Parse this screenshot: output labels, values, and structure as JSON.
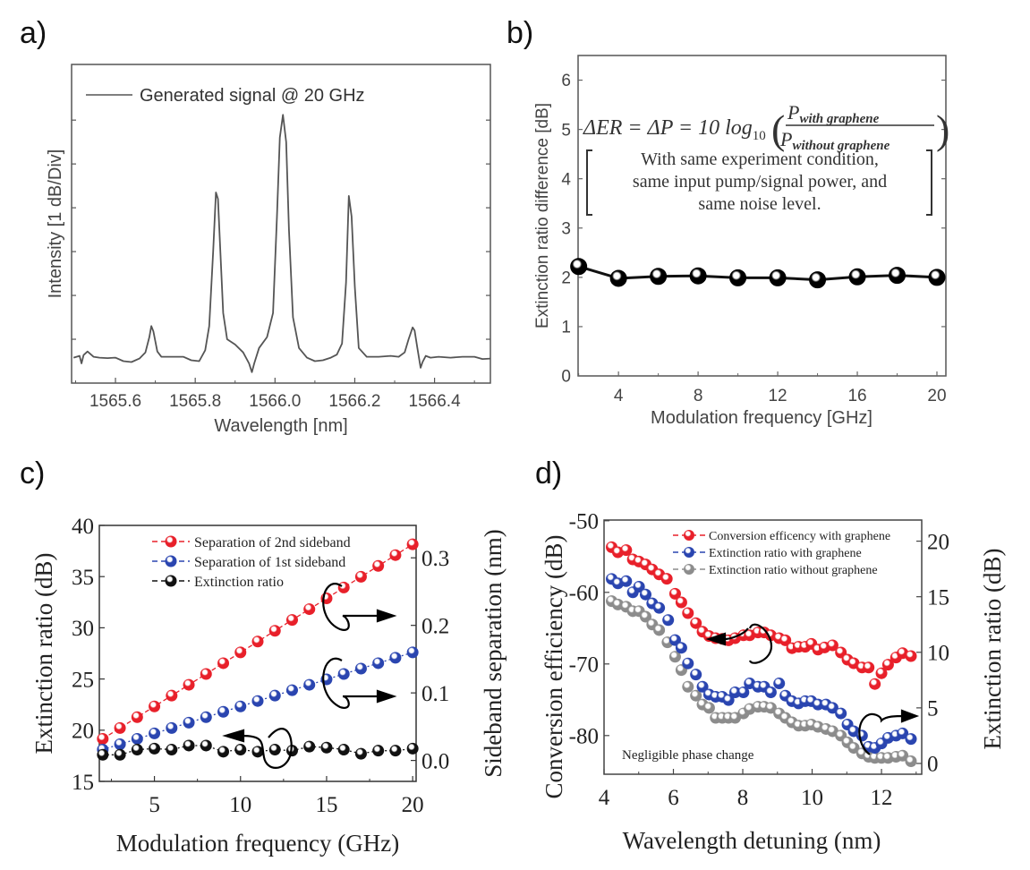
{
  "panel_labels": [
    "a)",
    "b)",
    "c)",
    "d)"
  ],
  "chart_data": [
    {
      "id": "a",
      "type": "line",
      "title": "",
      "xlabel": "Wavelength [nm]",
      "ylabel": "Intensity [1 dB/Div]",
      "xlim": [
        1565.49,
        1566.54
      ],
      "ylim": [
        0,
        7.27
      ],
      "y_unit": "divisions (1 dB/Div)",
      "xticks": [
        1565.6,
        1565.8,
        1566.0,
        1566.2,
        1566.4
      ],
      "xtick_labels": [
        "1565.6",
        "1565.8",
        "1566.0",
        "1566.2",
        "1566.4"
      ],
      "yticks_unlabeled": [
        1,
        2,
        3,
        4,
        5,
        6
      ],
      "grid": false,
      "legend": {
        "placement": "top-left",
        "entries": [
          "Generated signal @ 20 GHz"
        ]
      },
      "series": [
        {
          "name": "Generated signal @ 20 GHz",
          "color": "#555555",
          "x": [
            1565.495,
            1565.51,
            1565.515,
            1565.52,
            1565.53,
            1565.545,
            1565.56,
            1565.58,
            1565.6,
            1565.62,
            1565.64,
            1565.66,
            1565.675,
            1565.685,
            1565.69,
            1565.695,
            1565.705,
            1565.715,
            1565.73,
            1565.75,
            1565.77,
            1565.79,
            1565.81,
            1565.825,
            1565.835,
            1565.845,
            1565.852,
            1565.857,
            1565.862,
            1565.87,
            1565.88,
            1565.9,
            1565.92,
            1565.935,
            1565.942,
            1565.948,
            1565.96,
            1565.98,
            1565.995,
            1566.005,
            1566.012,
            1566.02,
            1566.028,
            1566.035,
            1566.045,
            1566.06,
            1566.08,
            1566.1,
            1566.12,
            1566.14,
            1566.155,
            1566.168,
            1566.178,
            1566.185,
            1566.192,
            1566.2,
            1566.21,
            1566.23,
            1566.26,
            1566.29,
            1566.31,
            1566.325,
            1566.335,
            1566.345,
            1566.35,
            1566.357,
            1566.365,
            1566.37,
            1566.378,
            1566.39,
            1566.41,
            1566.44,
            1566.47,
            1566.5,
            1566.52,
            1566.54
          ],
          "y": [
            0.58,
            0.62,
            0.45,
            0.64,
            0.72,
            0.6,
            0.58,
            0.57,
            0.58,
            0.5,
            0.48,
            0.56,
            0.7,
            1.05,
            1.3,
            1.18,
            0.72,
            0.6,
            0.6,
            0.6,
            0.6,
            0.52,
            0.5,
            0.75,
            1.3,
            3.0,
            4.35,
            4.2,
            3.2,
            1.6,
            1.0,
            0.88,
            0.7,
            0.45,
            0.25,
            0.45,
            0.8,
            1.05,
            1.6,
            3.8,
            5.6,
            6.12,
            5.5,
            3.5,
            1.5,
            0.8,
            0.58,
            0.5,
            0.52,
            0.58,
            0.65,
            0.9,
            2.3,
            4.27,
            3.8,
            2.2,
            0.8,
            0.6,
            0.6,
            0.62,
            0.6,
            0.7,
            1.0,
            1.27,
            1.2,
            0.8,
            0.35,
            0.48,
            0.62,
            0.58,
            0.6,
            0.58,
            0.6,
            0.6,
            0.55,
            0.56
          ]
        }
      ]
    },
    {
      "id": "b",
      "type": "line",
      "title": "",
      "xlabel": "Modulation frequency [GHz]",
      "ylabel": "Extinction ratio difference [dB]",
      "xlim": [
        1.97,
        20.45
      ],
      "ylim": [
        0,
        6.5
      ],
      "xticks": [
        4,
        8,
        12,
        16,
        20
      ],
      "xtick_labels": [
        "4",
        "8",
        "12",
        "16",
        "20"
      ],
      "yticks": [
        0,
        1,
        2,
        3,
        4,
        5,
        6
      ],
      "ytick_labels": [
        "0",
        "1",
        "2",
        "3",
        "4",
        "5",
        "6"
      ],
      "grid": false,
      "annotation": {
        "equation": {
          "lhs": "ΔER = ΔP = 10 log",
          "sub": "10",
          "numerator": "P",
          "numerator_sub": "with graphene",
          "denominator": "P",
          "denominator_sub": "without graphene"
        },
        "note_lines": [
          "With same experiment condition,",
          "same input pump/signal power,  and",
          "same noise level."
        ]
      },
      "series": [
        {
          "name": "Extinction ratio difference",
          "color": "#000000",
          "x": [
            2,
            4,
            6,
            8,
            10,
            12,
            14,
            16,
            18,
            20
          ],
          "y": [
            2.22,
            1.98,
            2.02,
            2.03,
            1.99,
            1.99,
            1.95,
            2.01,
            2.04,
            2.0
          ]
        }
      ]
    },
    {
      "id": "c",
      "type": "scatter",
      "title": "",
      "xlabel": "Modulation frequency (GHz)",
      "ylabel": "Extinction ratio (dB)",
      "ylabel_right": "Sideband separation (nm)",
      "xlim": [
        1.8,
        20.2
      ],
      "ylim": [
        15,
        40
      ],
      "ylim_right": [
        -0.031,
        0.348
      ],
      "xticks": [
        5,
        10,
        15,
        20
      ],
      "xtick_labels": [
        "5",
        "10",
        "15",
        "20"
      ],
      "yticks": [
        15,
        20,
        25,
        30,
        35,
        40
      ],
      "ytick_labels": [
        "15",
        "20",
        "25",
        "30",
        "35",
        "40"
      ],
      "yticks_right": [
        0.0,
        0.1,
        0.2,
        0.3
      ],
      "ytick_labels_right": [
        "0.0",
        "0.1",
        "0.2",
        "0.3"
      ],
      "grid": false,
      "legend": {
        "placement": "top-center",
        "entries": [
          "Separation of 2nd sideband",
          "Separation of 1st sideband",
          "Extinction ratio"
        ]
      },
      "series": [
        {
          "name": "Separation of 2nd sideband",
          "axis": "right",
          "color": "#e8202a",
          "x": [
            2,
            3,
            4,
            5,
            6,
            7,
            8,
            9,
            10,
            11,
            12,
            13,
            14,
            15,
            16,
            17,
            18,
            19,
            20
          ],
          "y": [
            0.032,
            0.048,
            0.064,
            0.08,
            0.096,
            0.112,
            0.128,
            0.144,
            0.16,
            0.176,
            0.192,
            0.208,
            0.224,
            0.24,
            0.256,
            0.272,
            0.288,
            0.304,
            0.32
          ]
        },
        {
          "name": "Separation of 1st sideband",
          "axis": "right",
          "color": "#2a45b0",
          "x": [
            2,
            3,
            4,
            5,
            6,
            7,
            8,
            9,
            10,
            11,
            12,
            13,
            14,
            15,
            16,
            17,
            18,
            19,
            20
          ],
          "y": [
            0.016,
            0.024,
            0.032,
            0.04,
            0.048,
            0.056,
            0.064,
            0.072,
            0.08,
            0.088,
            0.096,
            0.104,
            0.112,
            0.12,
            0.128,
            0.136,
            0.144,
            0.152,
            0.16
          ]
        },
        {
          "name": "Extinction ratio",
          "axis": "left",
          "color": "#111111",
          "x": [
            2,
            3,
            4,
            5,
            6,
            7,
            8,
            9,
            10,
            11,
            12,
            13,
            14,
            15,
            16,
            17,
            18,
            19,
            20
          ],
          "y": [
            17.6,
            17.6,
            18.1,
            18.2,
            18.1,
            18.5,
            18.5,
            17.9,
            18.1,
            17.9,
            18.1,
            18.0,
            18.4,
            18.3,
            18.1,
            17.7,
            18.0,
            18.0,
            18.2
          ]
        }
      ],
      "axis_indicators": [
        {
          "series": "Separation of 2nd sideband",
          "direction": "right"
        },
        {
          "series": "Separation of 1st sideband",
          "direction": "right"
        },
        {
          "series": "Extinction ratio",
          "direction": "left"
        }
      ]
    },
    {
      "id": "d",
      "type": "scatter",
      "title": "",
      "xlabel": "Wavelength detuning (nm)",
      "ylabel": "Conversion efficiency (dB)",
      "ylabel_right": "Extinction ratio (dB)",
      "xlim": [
        4,
        13.16
      ],
      "ylim": [
        -85.4,
        -49.9
      ],
      "ylim_right": [
        -0.97,
        21.9
      ],
      "xticks": [
        4,
        6,
        8,
        10,
        12
      ],
      "xtick_labels": [
        "4",
        "6",
        "8",
        "10",
        "12"
      ],
      "yticks": [
        -50,
        -60,
        -70,
        -80
      ],
      "ytick_labels": [
        "-50",
        "-60",
        "-70",
        "-80"
      ],
      "yticks_right": [
        0,
        5,
        10,
        15,
        20
      ],
      "ytick_labels_right": [
        "0",
        "5",
        "10",
        "15",
        "20"
      ],
      "grid": false,
      "annotation": "Negligible phase change",
      "legend": {
        "placement": "top-right",
        "entries": [
          "Conversion efficency with graphene",
          "Extinction ratio with graphene",
          "Extinction ratio without graphene"
        ]
      },
      "series": [
        {
          "name": "Conversion efficency with graphene",
          "axis": "left",
          "color": "#e8202a",
          "x": [
            4.22,
            4.4,
            4.64,
            4.83,
            5.01,
            5.2,
            5.39,
            5.59,
            5.81,
            6.05,
            6.23,
            6.42,
            6.65,
            6.84,
            7.03,
            7.22,
            7.41,
            7.59,
            7.78,
            8.02,
            8.2,
            8.44,
            8.62,
            8.81,
            9.05,
            9.23,
            9.42,
            9.61,
            9.8,
            9.98,
            10.17,
            10.36,
            10.59,
            10.83,
            11.02,
            11.2,
            11.44,
            11.63,
            11.81,
            12.0,
            12.19,
            12.42,
            12.61,
            12.85
          ],
          "y": [
            -53.7,
            -54.4,
            -54.1,
            -55.4,
            -55.7,
            -56.1,
            -56.8,
            -57.5,
            -58.1,
            -60.2,
            -61.4,
            -62.9,
            -64.3,
            -65.5,
            -66.1,
            -66.4,
            -66.5,
            -66.7,
            -66.4,
            -66.0,
            -66.0,
            -65.6,
            -65.6,
            -66.0,
            -66.4,
            -66.7,
            -67.8,
            -67.6,
            -67.6,
            -67.2,
            -68.0,
            -67.7,
            -67.4,
            -68.4,
            -69.4,
            -69.9,
            -70.5,
            -70.5,
            -72.8,
            -71.3,
            -70.1,
            -69.1,
            -68.5,
            -68.9
          ]
        },
        {
          "name": "Extinction ratio with graphene",
          "axis": "right",
          "color": "#2a45b0",
          "x": [
            4.22,
            4.4,
            4.64,
            4.83,
            5.01,
            5.2,
            5.39,
            5.59,
            5.85,
            6.05,
            6.23,
            6.42,
            6.65,
            6.84,
            7.03,
            7.22,
            7.41,
            7.59,
            7.78,
            8.02,
            8.2,
            8.44,
            8.62,
            8.81,
            9.05,
            9.23,
            9.42,
            9.61,
            9.8,
            9.98,
            10.17,
            10.4,
            10.59,
            10.83,
            11.02,
            11.2,
            11.44,
            11.63,
            11.81,
            12.0,
            12.19,
            12.42,
            12.61,
            12.85
          ],
          "y": [
            16.6,
            16.2,
            16.4,
            15.4,
            15.9,
            15.2,
            14.4,
            14.0,
            12.9,
            11.1,
            10.4,
            9.0,
            8.0,
            6.9,
            6.2,
            6.0,
            6.0,
            5.7,
            6.4,
            6.4,
            7.2,
            6.9,
            6.9,
            6.4,
            7.2,
            6.1,
            5.6,
            5.4,
            5.6,
            5.6,
            5.3,
            5.3,
            5.0,
            4.5,
            3.5,
            2.9,
            2.5,
            1.5,
            1.4,
            1.8,
            2.3,
            2.5,
            2.7,
            2.2
          ]
        },
        {
          "name": "Extinction ratio without graphene",
          "axis": "right",
          "color": "#8c8c8c",
          "x": [
            4.22,
            4.4,
            4.64,
            4.83,
            5.01,
            5.2,
            5.39,
            5.59,
            5.83,
            6.05,
            6.23,
            6.42,
            6.65,
            6.84,
            7.03,
            7.22,
            7.41,
            7.59,
            7.78,
            8.02,
            8.2,
            8.44,
            8.62,
            8.81,
            9.05,
            9.23,
            9.42,
            9.61,
            9.8,
            9.98,
            10.17,
            10.4,
            10.59,
            10.83,
            11.02,
            11.2,
            11.44,
            11.63,
            11.81,
            12.0,
            12.19,
            12.42,
            12.61,
            12.85
          ],
          "y": [
            14.6,
            14.3,
            14.1,
            13.7,
            13.7,
            13.2,
            12.5,
            12.0,
            10.9,
            9.6,
            8.4,
            6.9,
            6.1,
            5.3,
            5.0,
            4.1,
            4.1,
            4.1,
            4.1,
            4.5,
            4.9,
            5.1,
            5.1,
            5.0,
            4.5,
            4.1,
            3.7,
            3.4,
            3.4,
            3.5,
            3.3,
            3.1,
            2.9,
            2.5,
            1.9,
            1.4,
            0.9,
            0.6,
            0.5,
            0.5,
            0.5,
            0.6,
            0.7,
            0.2
          ]
        }
      ],
      "axis_indicators": [
        {
          "series": "Conversion efficency with graphene",
          "direction": "left"
        },
        {
          "series": "Extinction ratio",
          "direction": "right"
        }
      ]
    }
  ]
}
